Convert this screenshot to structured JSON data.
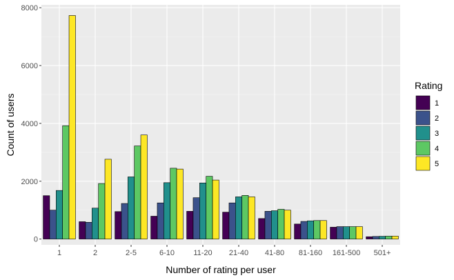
{
  "chart_data": {
    "type": "bar",
    "title": "",
    "xlabel": "Number of rating per user",
    "ylabel": "Count of users",
    "categories": [
      "1",
      "2",
      "2-5",
      "6-10",
      "11-20",
      "21-40",
      "41-80",
      "81-160",
      "161-500",
      "501+"
    ],
    "ylim": [
      -200,
      8100
    ],
    "yticks": [
      0,
      2000,
      4000,
      6000,
      8000
    ],
    "grid": true,
    "legend": {
      "title": "Rating",
      "position": "right"
    },
    "series": [
      {
        "name": "1",
        "color": "#440154",
        "values": [
          1500,
          600,
          950,
          790,
          960,
          930,
          710,
          520,
          410,
          80
        ]
      },
      {
        "name": "2",
        "color": "#3B528B",
        "values": [
          1000,
          580,
          1230,
          1250,
          1430,
          1250,
          960,
          610,
          430,
          90
        ]
      },
      {
        "name": "3",
        "color": "#21908C",
        "values": [
          1680,
          1070,
          2150,
          1950,
          1940,
          1460,
          980,
          630,
          430,
          95
        ]
      },
      {
        "name": "4",
        "color": "#5DC863",
        "values": [
          3920,
          1920,
          3220,
          2450,
          2170,
          1510,
          1030,
          640,
          430,
          100
        ]
      },
      {
        "name": "5",
        "color": "#FDE725",
        "values": [
          7730,
          2760,
          3600,
          2420,
          2040,
          1460,
          1000,
          640,
          430,
          100
        ]
      }
    ]
  }
}
